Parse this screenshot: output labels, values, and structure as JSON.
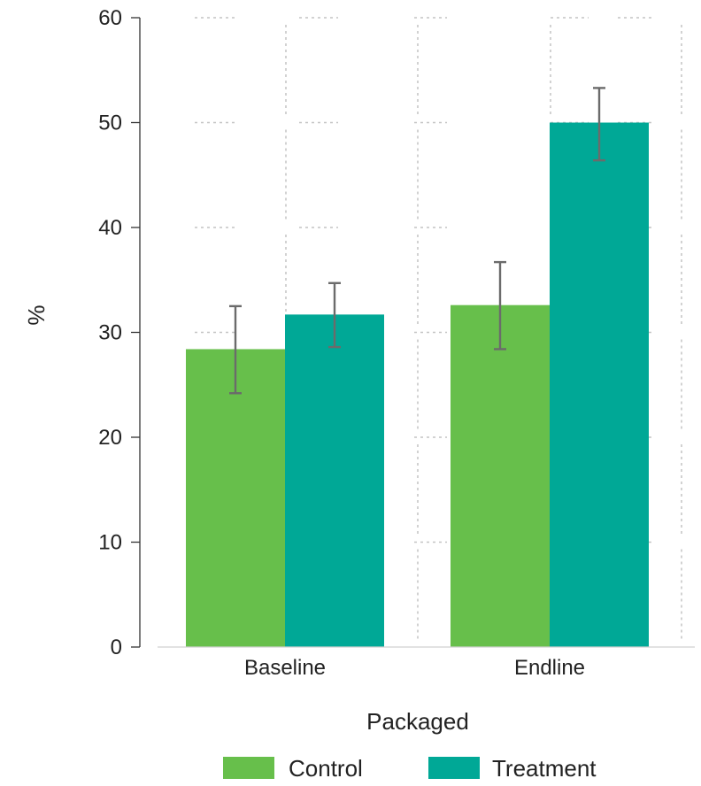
{
  "chart_data": {
    "type": "bar",
    "title": "",
    "xlabel": "Packaged",
    "ylabel": "%",
    "ylim": [
      0,
      60
    ],
    "yticks": [
      0,
      10,
      20,
      30,
      40,
      50,
      60
    ],
    "categories": [
      "Baseline",
      "Endline"
    ],
    "series": [
      {
        "name": "Control",
        "color": "#67bf4b",
        "values": [
          28.4,
          32.6
        ],
        "error_low": [
          24.2,
          28.4
        ],
        "error_high": [
          32.5,
          36.7
        ]
      },
      {
        "name": "Treatment",
        "color": "#00a896",
        "values": [
          31.7,
          50.0
        ],
        "error_low": [
          28.6,
          46.4
        ],
        "error_high": [
          34.7,
          53.3
        ]
      }
    ],
    "grid": true,
    "legend": "bottom"
  }
}
